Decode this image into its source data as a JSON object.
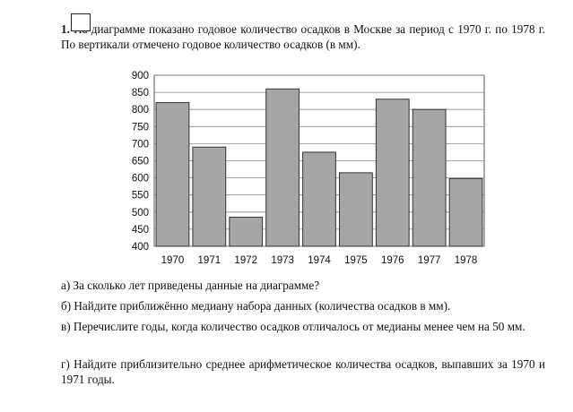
{
  "problem": {
    "number": "1.",
    "text": "На диаграмме показано годовое количество осадков в Москве за период с 1970 г. по 1978 г. По вертикали отмечено годовое количество осадков (в мм)."
  },
  "questions": {
    "a": "а) За сколько лет приведены данные на диаграмме?",
    "b": "б) Найдите приближённо медиану набора данных (количества осадков в мм).",
    "c": "в) Перечислите годы, когда количество осадков отличалось от медианы менее чем на 50 мм.",
    "d": "г) Найдите приблизительно среднее арифметическое количества осадков, выпавших за 1970 и 1971 годы."
  },
  "chart_data": {
    "type": "bar",
    "categories": [
      "1970",
      "1971",
      "1972",
      "1973",
      "1974",
      "1975",
      "1976",
      "1977",
      "1978"
    ],
    "values": [
      820,
      690,
      485,
      860,
      675,
      615,
      830,
      800,
      598
    ],
    "yticks": [
      "400",
      "450",
      "500",
      "550",
      "600",
      "650",
      "700",
      "750",
      "800",
      "850",
      "900"
    ],
    "ylim": [
      400,
      900
    ],
    "grid": true,
    "bar_color": "#a6a6a6",
    "title": "",
    "xlabel": "",
    "ylabel": ""
  }
}
